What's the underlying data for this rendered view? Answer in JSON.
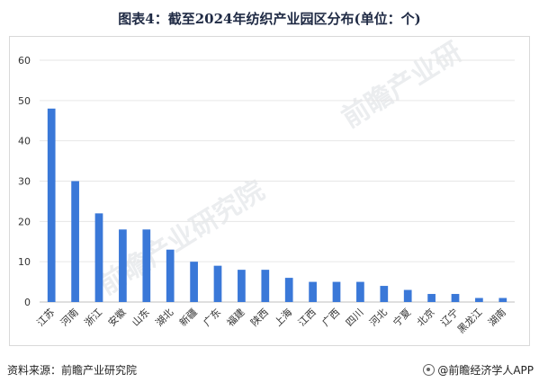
{
  "title": "图表4：截至2024年纺织产业园区分布(单位：个)",
  "footer": {
    "source": "资料来源：前瞻产业研究院",
    "brand": "@前瞻经济学人APP"
  },
  "watermark": {
    "text1": "前瞻产业研",
    "text2": "前瞻产业研究院"
  },
  "chart_data": {
    "type": "bar",
    "title": "图表4：截至2024年纺织产业园区分布(单位：个)",
    "xlabel": "",
    "ylabel": "",
    "ylim": [
      0,
      60
    ],
    "yticks": [
      0,
      10,
      20,
      30,
      40,
      50,
      60
    ],
    "grid": true,
    "legend": "none",
    "bar_color": "#3a78d8",
    "categories": [
      "江苏",
      "河南",
      "浙江",
      "安徽",
      "山东",
      "湖北",
      "新疆",
      "广东",
      "福建",
      "陕西",
      "上海",
      "江西",
      "广西",
      "四川",
      "河北",
      "宁夏",
      "北京",
      "辽宁",
      "黑龙江",
      "湖南"
    ],
    "values": [
      48,
      30,
      22,
      18,
      18,
      13,
      10,
      9,
      8,
      8,
      6,
      5,
      5,
      5,
      4,
      3,
      2,
      2,
      1,
      1
    ]
  }
}
